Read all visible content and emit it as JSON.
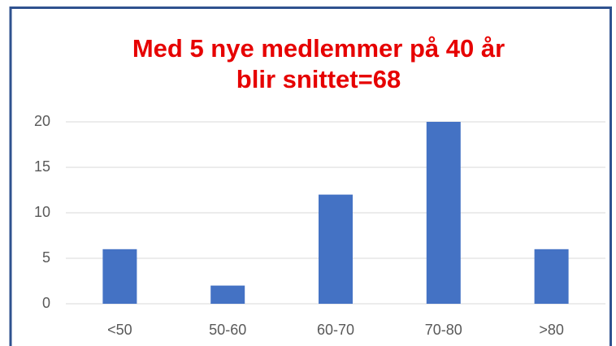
{
  "chart_data": {
    "type": "bar",
    "title": [
      "Med 5 nye medlemmer på 40 år",
      "blir snittet=68"
    ],
    "categories": [
      "<50",
      "50-60",
      "60-70",
      "70-80",
      ">80"
    ],
    "values": [
      6,
      2,
      12,
      20,
      6
    ],
    "color": "#4472c4",
    "title_color": "#e60000",
    "ylim": [
      0,
      20
    ],
    "yticks": [
      0,
      5,
      10,
      15,
      20
    ],
    "grid": true
  }
}
